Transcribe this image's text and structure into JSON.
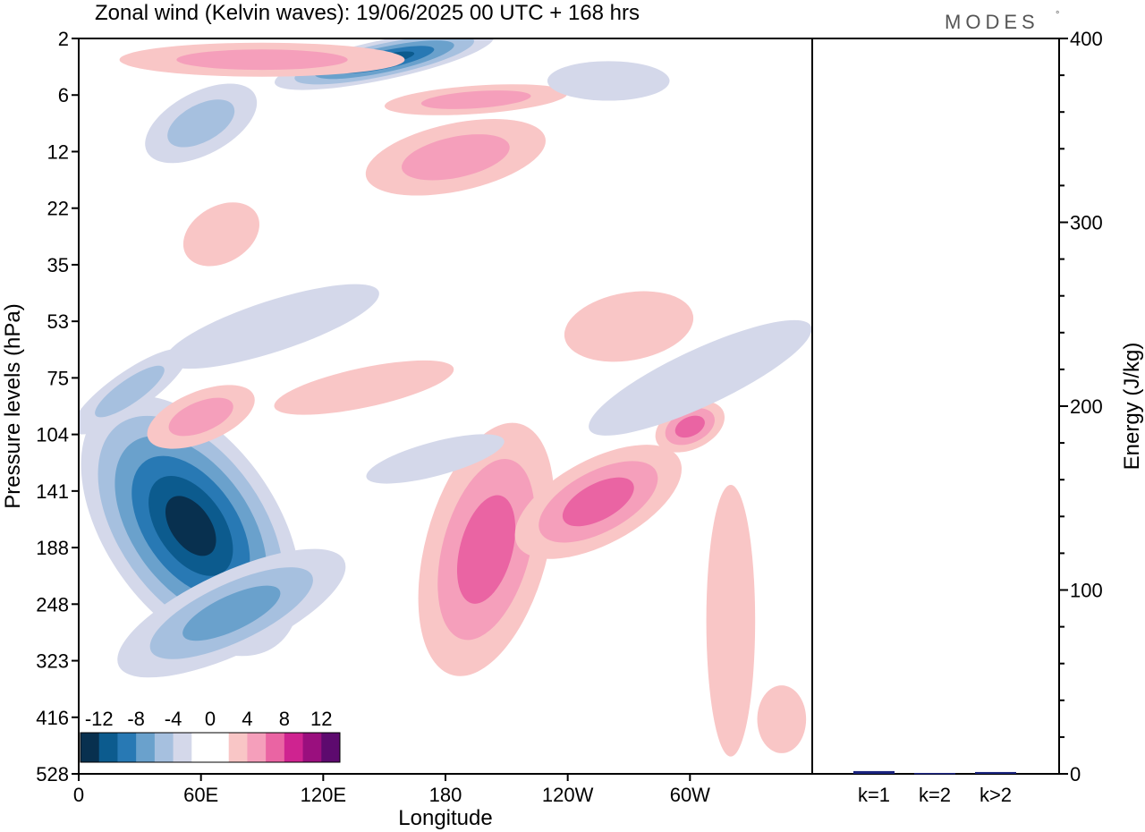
{
  "title": "Zonal wind (Kelvin waves):  19/06/2025  00 UTC  + 168 hrs",
  "logo": {
    "text": "MODES",
    "mark": "°"
  },
  "main_panel": {
    "xlabel": "Longitude",
    "ylabel": "Pressure levels (hPa)",
    "x_ticks": [
      "0",
      "60E",
      "120E",
      "180",
      "120W",
      "60W"
    ],
    "y_ticks": [
      "2",
      "6",
      "12",
      "22",
      "35",
      "53",
      "75",
      "104",
      "141",
      "188",
      "248",
      "323",
      "416",
      "528"
    ]
  },
  "colorbar": {
    "labels": [
      "-12",
      "-8",
      "-4",
      "0",
      "4",
      "8",
      "12"
    ],
    "colors": [
      "#08304f",
      "#0c5b8e",
      "#2879b4",
      "#6aa1cc",
      "#a6c0df",
      "#d4d8ea",
      "#ffffff",
      "#ffffff",
      "#f9c6c6",
      "#f59fbb",
      "#ea64a3",
      "#cf2390",
      "#9a0f7e",
      "#5d0a6e"
    ]
  },
  "chart_data": [
    {
      "type": "heatmap",
      "title": "Zonal wind (Kelvin waves):  19/06/2025  00 UTC  + 168 hrs",
      "xlabel": "Longitude",
      "ylabel": "Pressure levels (hPa)",
      "x_ticks": [
        "0",
        "60E",
        "120E",
        "180",
        "120W",
        "60W"
      ],
      "y_ticks": [
        2,
        6,
        12,
        22,
        35,
        53,
        75,
        104,
        141,
        188,
        248,
        323,
        416,
        528
      ],
      "colorbar_levels": [
        -12,
        -8,
        -4,
        0,
        4,
        8,
        12
      ],
      "features": [
        {
          "lon": 55,
          "hPa": 165,
          "value": -13
        },
        {
          "lon": 200,
          "hPa": 160,
          "value": 6
        },
        {
          "lon": 250,
          "hPa": 150,
          "value": 7
        },
        {
          "lon": 300,
          "hPa": 100,
          "value": 7
        },
        {
          "lon": 150,
          "hPa": 3,
          "value": -11
        },
        {
          "lon": 185,
          "hPa": 13,
          "value": 4
        },
        {
          "lon": 60,
          "hPa": 95,
          "value": 5
        },
        {
          "lon": 20,
          "hPa": 85,
          "value": -6
        },
        {
          "lon": 105,
          "hPa": 60,
          "value": -3
        },
        {
          "lon": 265,
          "hPa": 55,
          "value": 3
        }
      ]
    },
    {
      "type": "bar",
      "categories": [
        "k=1",
        "k=2",
        "k>2"
      ],
      "values": [
        1.5,
        0.5,
        1
      ],
      "ylabel": "Energy (J/kg)",
      "ylim": [
        0,
        400
      ],
      "y_ticks": [
        0,
        100,
        200,
        300,
        400
      ]
    }
  ],
  "energy_panel": {
    "ylabel": "Energy (J/kg)",
    "bar_color": "#1a237e"
  }
}
